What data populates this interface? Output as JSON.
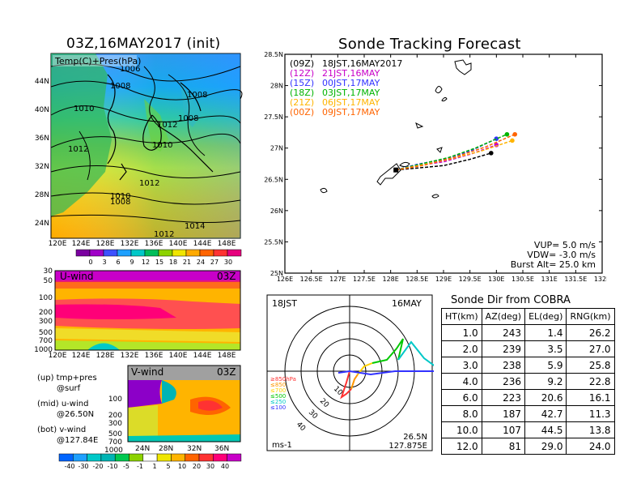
{
  "left": {
    "title": "03Z,16MAY2017 (init)",
    "map_label": "Temp(C)+Pres(hPa)",
    "lat_ticks": [
      "44N",
      "40N",
      "36N",
      "32N",
      "28N",
      "24N"
    ],
    "lon_ticks": [
      "120E",
      "124E",
      "128E",
      "132E",
      "136E",
      "140E",
      "144E",
      "148E"
    ],
    "pressure_labels": [
      "1006",
      "1008",
      "1008",
      "1010",
      "1012",
      "1008",
      "1010",
      "1012",
      "1012",
      "1010",
      "1008",
      "1014",
      "1012"
    ],
    "temp_colorbar": [
      "0",
      "3",
      "6",
      "9",
      "12",
      "15",
      "18",
      "21",
      "24",
      "27",
      "30"
    ],
    "temp_colors": [
      "#7a00a0",
      "#a000c8",
      "#3c50ff",
      "#1ea0ff",
      "#00c8c8",
      "#00be5a",
      "#8cd200",
      "#f0e600",
      "#ffaa00",
      "#ff6400",
      "#ff3232",
      "#e6007d"
    ],
    "uwind": {
      "label": "U-wind",
      "time": "03Z",
      "p_ticks": [
        "30",
        "50",
        "100",
        "200",
        "300",
        "500",
        "700",
        "1000"
      ],
      "lon_ticks": [
        "120E",
        "124E",
        "128E",
        "132E",
        "136E",
        "140E",
        "144E",
        "148E"
      ]
    },
    "vwind": {
      "label": "V-wind",
      "time": "03Z",
      "p_ticks": [
        "100",
        "200",
        "300",
        "500",
        "700",
        "1000"
      ],
      "lat_ticks": [
        "24N",
        "28N",
        "32N",
        "36N"
      ]
    },
    "legend": {
      "l1": "(up) tmp+pres",
      "l2": "@surf",
      "l3": "(mid) u-wind",
      "l4": "@26.50N",
      "l5": "(bot) v-wind",
      "l6": "@127.84E"
    },
    "wind_colorbar": [
      "-40",
      "-30",
      "-20",
      "-10",
      "-5",
      "-1",
      "1",
      "5",
      "10",
      "20",
      "30",
      "40"
    ]
  },
  "tracking": {
    "title": "Sonde Tracking Forecast",
    "lat_ticks": [
      "28.5N",
      "28N",
      "27.5N",
      "27N",
      "26.5N",
      "26N",
      "25.5N",
      "25N"
    ],
    "lon_ticks": [
      "126E",
      "126.5E",
      "127E",
      "127.5E",
      "128E",
      "128.5E",
      "129E",
      "129.5E",
      "130E",
      "130.5E",
      "131E",
      "131.5E",
      "132E"
    ],
    "entries": [
      {
        "code": "(09Z)",
        "time": "18JST,16MAY2017",
        "color": "#000000"
      },
      {
        "code": "(12Z)",
        "time": "21JST,16MAY",
        "color": "#c800c8"
      },
      {
        "code": "(15Z)",
        "time": "00JST,17MAY",
        "color": "#3232ff"
      },
      {
        "code": "(18Z)",
        "time": "03JST,17MAY",
        "color": "#00b400"
      },
      {
        "code": "(21Z)",
        "time": "06JST,17MAY",
        "color": "#ffb400"
      },
      {
        "code": "(00Z)",
        "time": "09JST,17MAY",
        "color": "#ff6400"
      }
    ],
    "vup": "VUP=  5.0 m/s",
    "vdw": "VDW= -3.0 m/s",
    "burst": "Burst Alt= 25.0 km"
  },
  "chart_data": [
    {
      "type": "scatter",
      "title": "Sonde Tracking Forecast",
      "xlim": [
        126,
        132
      ],
      "ylim": [
        25,
        28.5
      ],
      "series": [
        {
          "name": "(09Z) 18JST,16MAY2017",
          "x": [
            128.1,
            128.5,
            129.0,
            129.5,
            129.9
          ],
          "y": [
            26.65,
            26.68,
            26.72,
            26.82,
            26.92
          ]
        },
        {
          "name": "(12Z) 21JST,16MAY",
          "x": [
            128.1,
            128.5,
            129.0,
            129.5,
            130.0
          ],
          "y": [
            26.65,
            26.72,
            26.78,
            26.9,
            27.05
          ]
        },
        {
          "name": "(15Z) 00JST,17MAY",
          "x": [
            128.1,
            128.5,
            129.0,
            129.5,
            130.0
          ],
          "y": [
            26.65,
            26.74,
            26.82,
            26.95,
            27.15
          ]
        },
        {
          "name": "(18Z) 03JST,17MAY",
          "x": [
            128.1,
            128.6,
            129.1,
            129.6,
            130.2
          ],
          "y": [
            26.65,
            26.75,
            26.85,
            27.0,
            27.22
          ]
        },
        {
          "name": "(21Z) 06JST,17MAY",
          "x": [
            128.1,
            128.6,
            129.1,
            129.7,
            130.3
          ],
          "y": [
            26.65,
            26.73,
            26.82,
            26.95,
            27.12
          ]
        },
        {
          "name": "(00Z) 09JST,17MAY",
          "x": [
            128.1,
            128.6,
            129.2,
            129.8,
            130.35
          ],
          "y": [
            26.65,
            26.72,
            26.85,
            27.02,
            27.22
          ]
        }
      ]
    },
    {
      "type": "table",
      "title": "Sonde Dir from COBRA",
      "columns": [
        "HT(km)",
        "AZ(deg)",
        "EL(deg)",
        "RNG(km)"
      ],
      "rows": [
        [
          "1.0",
          "243",
          "1.4",
          "26.2"
        ],
        [
          "2.0",
          "239",
          "3.5",
          "27.0"
        ],
        [
          "3.0",
          "238",
          "5.9",
          "25.8"
        ],
        [
          "4.0",
          "236",
          "9.2",
          "22.8"
        ],
        [
          "6.0",
          "223",
          "20.6",
          "16.1"
        ],
        [
          "8.0",
          "187",
          "42.7",
          "11.3"
        ],
        [
          "10.0",
          "107",
          "44.5",
          "13.8"
        ],
        [
          "12.0",
          "81",
          "29.0",
          "24.0"
        ]
      ]
    }
  ],
  "polar": {
    "time": "18JST",
    "date": "16MAY",
    "unit": "ms-1",
    "loc1": "26.5N",
    "loc2": "127.875E",
    "ring_labels": [
      "10",
      "20",
      "30",
      "40"
    ],
    "levels": [
      {
        "label": "≥850hPa",
        "color": "#ff3232"
      },
      {
        "label": "≤850",
        "color": "#ff9600"
      },
      {
        "label": "≤700",
        "color": "#ffd200"
      },
      {
        "label": "≤500",
        "color": "#00c800"
      },
      {
        "label": "≤250",
        "color": "#00c8c8"
      },
      {
        "label": "≤100",
        "color": "#3232ff"
      }
    ]
  },
  "table": {
    "title": "Sonde Dir from COBRA",
    "headers": [
      "HT(km)",
      "AZ(deg)",
      "EL(deg)",
      "RNG(km)"
    ]
  }
}
